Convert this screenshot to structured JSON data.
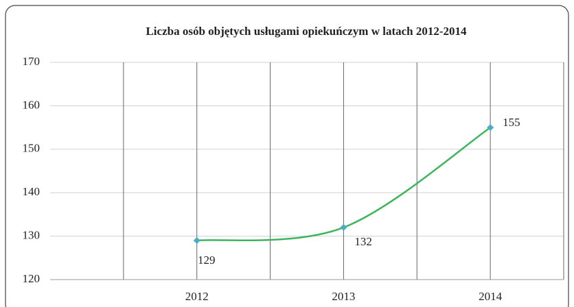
{
  "chart_data": {
    "type": "line",
    "title": "Liczba osób objętych usługami opiekuńczym w latach 2012-2014",
    "categories": [
      "2012",
      "2013",
      "2014"
    ],
    "series": [
      {
        "name": null,
        "color": "#3cb55c",
        "marker_color": "#4bacc6",
        "values": [
          129,
          132,
          155
        ]
      }
    ],
    "ylim": [
      120,
      170
    ],
    "yticks": [
      120,
      130,
      140,
      150,
      160,
      170
    ],
    "grid": true,
    "smooth": true
  }
}
